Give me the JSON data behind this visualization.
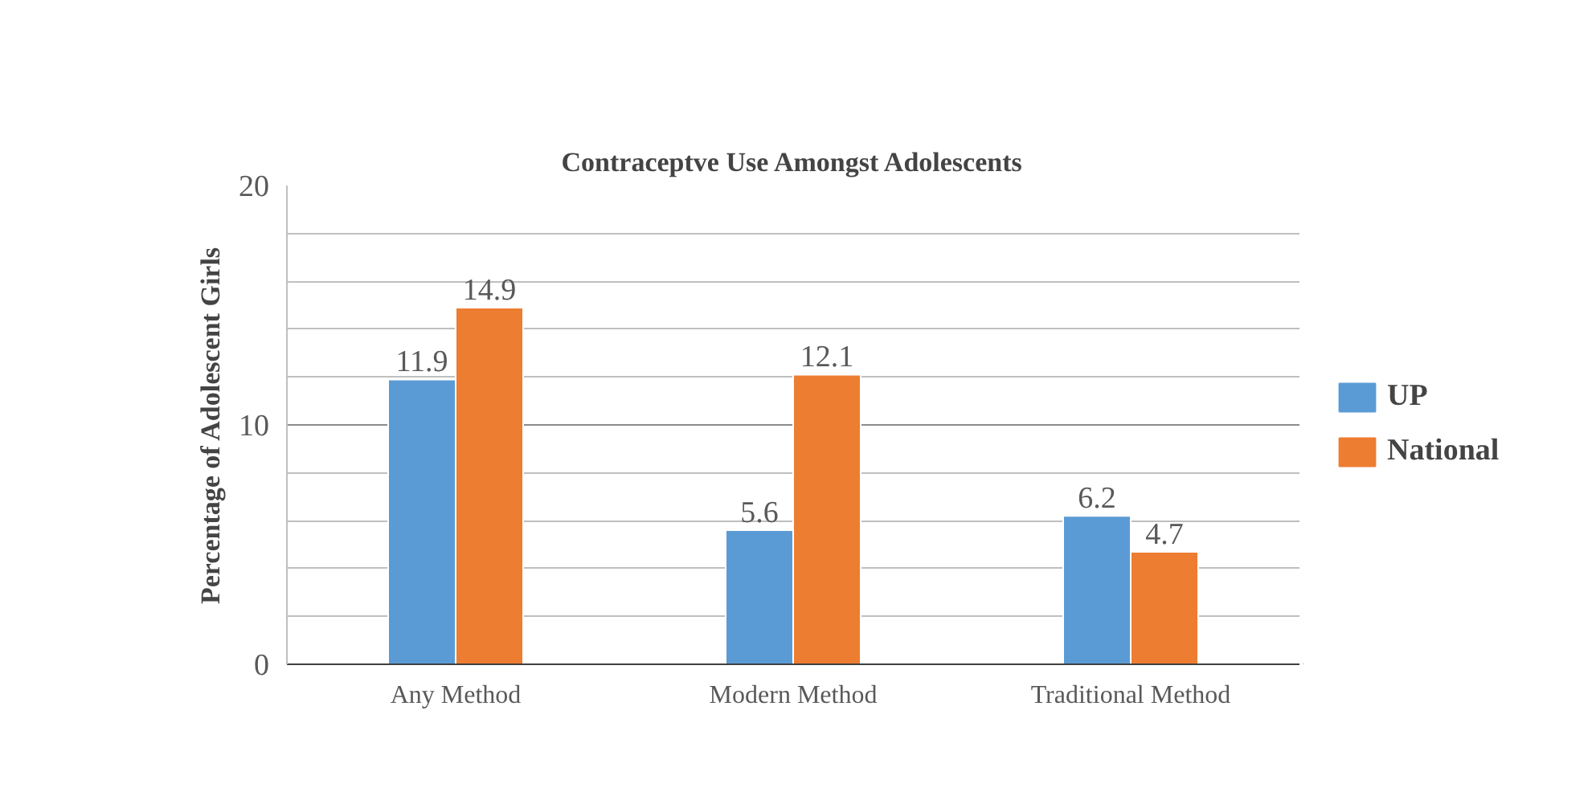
{
  "chart_data": {
    "type": "bar",
    "title": "Contraceptve Use Amongst Adolescents",
    "ylabel": "Percentage of Adolescent Girls",
    "categories": [
      "Any Method",
      "Modern Method",
      "Traditional Method"
    ],
    "series": [
      {
        "name": "UP",
        "color": "#5b9bd5",
        "values": [
          11.9,
          5.6,
          6.2
        ]
      },
      {
        "name": "National",
        "color": "#ed7d31",
        "values": [
          14.9,
          12.1,
          4.7
        ]
      }
    ],
    "ylim": [
      0,
      20
    ],
    "yticks": [
      0,
      10,
      20
    ],
    "grid": "y",
    "legend": "right",
    "data_labels": true
  }
}
